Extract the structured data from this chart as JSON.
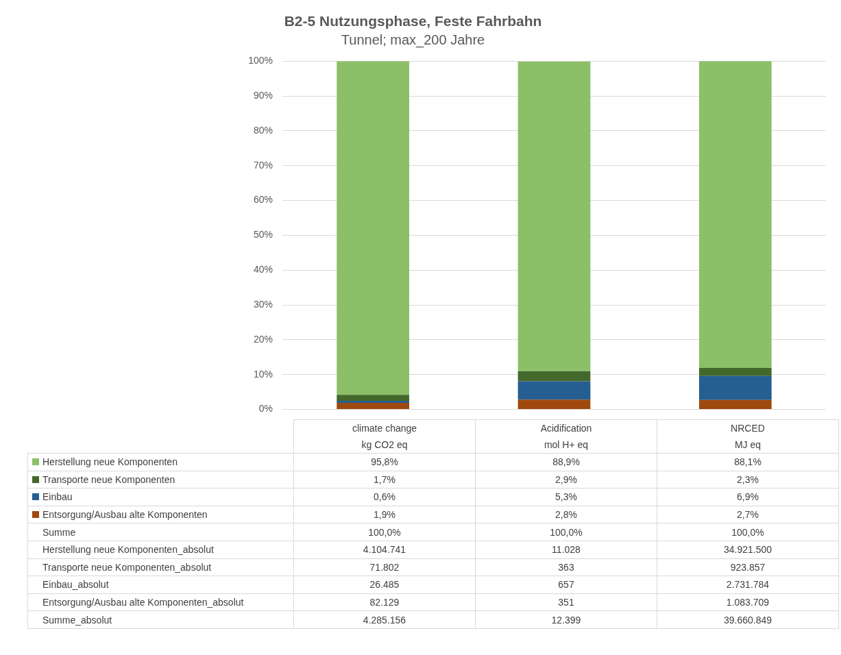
{
  "chart_data": {
    "type": "bar",
    "title": "B2-5 Nutzungsphase, Feste Fahrbahn",
    "subtitle": "Tunnel; max_200 Jahre",
    "categories": [
      "climate change\nkg CO2 eq",
      "Acidification\nmol H+ eq",
      "NRCED\nMJ eq"
    ],
    "stacked": true,
    "series": [
      {
        "name": "Entsorgung/Ausbau alte Komponenten",
        "color": "#9e480e",
        "values": [
          1.9,
          2.8,
          2.7
        ],
        "value_labels": [
          "1,9%",
          "2,8%",
          "2,7%"
        ]
      },
      {
        "name": "Einbau",
        "color": "#255e91",
        "values": [
          0.6,
          5.3,
          6.9
        ],
        "value_labels": [
          "0,6%",
          "5,3%",
          "6,9%"
        ]
      },
      {
        "name": "Transporte neue Komponenten",
        "color": "#43682b",
        "values": [
          1.7,
          2.9,
          2.3
        ],
        "value_labels": [
          "1,7%",
          "2,9%",
          "2,3%"
        ]
      },
      {
        "name": "Herstellung neue Komponenten",
        "color": "#8cc068",
        "values": [
          95.8,
          88.9,
          88.1
        ],
        "value_labels": [
          "95,8%",
          "88,9%",
          "88,1%"
        ]
      }
    ],
    "ylim": [
      0,
      100
    ],
    "yticks": [
      {
        "value": 0,
        "label": "0%"
      },
      {
        "value": 10,
        "label": "10%"
      },
      {
        "value": 20,
        "label": "20%"
      },
      {
        "value": 30,
        "label": "30%"
      },
      {
        "value": 40,
        "label": "40%"
      },
      {
        "value": 50,
        "label": "50%"
      },
      {
        "value": 60,
        "label": "60%"
      },
      {
        "value": 70,
        "label": "70%"
      },
      {
        "value": 80,
        "label": "80%"
      },
      {
        "value": 90,
        "label": "90%"
      },
      {
        "value": 100,
        "label": "100%"
      }
    ],
    "grid": "y",
    "legend": "bottom",
    "annotations": [
      "Summe",
      "100,0%",
      "100,0%",
      "100,0%",
      "Herstellung neue Komponenten_absolut",
      "4.104.741",
      "11.028",
      "34.921.500",
      "Transporte neue Komponenten_absolut",
      "71.802",
      "363",
      "923.857",
      "Einbau_absolut",
      "26.485",
      "657",
      "2.731.784",
      "Entsorgung/Ausbau alte Komponenten_absolut",
      "82.129",
      "351",
      "1.083.709",
      "Summe_absolut",
      "4.285.156",
      "12.399",
      "39.660.849"
    ]
  }
}
